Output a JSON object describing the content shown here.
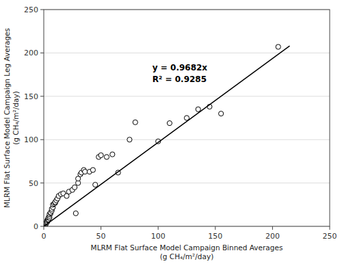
{
  "chart_data": {
    "type": "scatter",
    "x_label": [
      "MLRM Flat Surface Model Campaign Binned Averages",
      "(g CH₄/m²/day)"
    ],
    "y_label": [
      "MLRM Flat Surface Model Campaign Leg Averages",
      "(g CH₄/m²/day)"
    ],
    "xlim": [
      0,
      250
    ],
    "ylim": [
      0,
      250
    ],
    "xticks": [
      0,
      50,
      100,
      150,
      200,
      250
    ],
    "yticks": [
      0,
      50,
      100,
      150,
      200,
      250
    ],
    "grid": "y",
    "annotations": [
      "y = 0.9682x",
      "R² = 0.9285"
    ],
    "series": [
      {
        "type": "scatter",
        "marker": "circle",
        "color": "black",
        "x": [
          0.5,
          1,
          1,
          1.5,
          2,
          2,
          2.5,
          3,
          3,
          3.5,
          4,
          4,
          5,
          5,
          5,
          6,
          6,
          7,
          7,
          8,
          8,
          9,
          10,
          10,
          11,
          12,
          13,
          15,
          17,
          20,
          22,
          25,
          27,
          28,
          30,
          30,
          32,
          33,
          35,
          36,
          40,
          43,
          45,
          48,
          50,
          55,
          60,
          65,
          75,
          80,
          100,
          110,
          125,
          135,
          145,
          155,
          205
        ],
        "values": [
          0.5,
          1,
          2,
          2,
          3,
          4,
          5,
          5,
          7,
          8,
          8,
          10,
          10,
          12,
          14,
          15,
          16,
          18,
          20,
          22,
          25,
          26,
          27,
          28,
          30,
          32,
          35,
          37,
          38,
          35,
          40,
          42,
          45,
          15,
          50,
          55,
          60,
          62,
          65,
          63,
          63,
          65,
          48,
          80,
          82,
          80,
          83,
          62,
          100,
          120,
          98,
          119,
          125,
          135,
          138,
          130,
          207
        ]
      },
      {
        "type": "line",
        "line_style": "solid",
        "color": "black",
        "x": [
          0,
          215
        ],
        "values": [
          0,
          208.163
        ]
      }
    ]
  }
}
